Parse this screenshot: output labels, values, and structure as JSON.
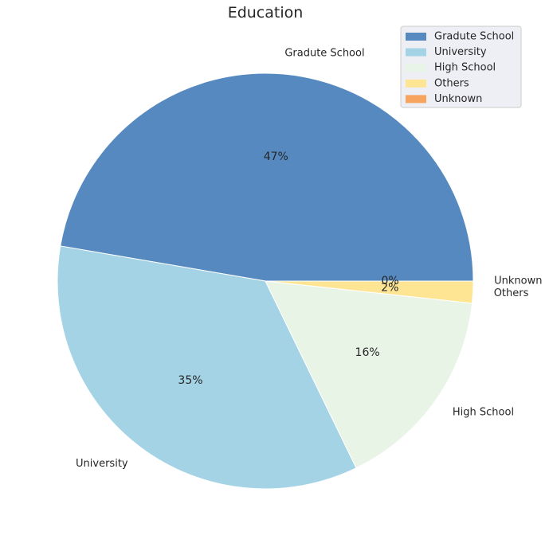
{
  "chart_data": {
    "type": "pie",
    "title": "Education",
    "categories": [
      "Gradute School",
      "University",
      "High School",
      "Others",
      "Unknown"
    ],
    "values": [
      47.3,
      34.9,
      16.1,
      1.7,
      0.0
    ],
    "percent_labels": [
      "47%",
      "35%",
      "16%",
      "2%",
      "0%"
    ],
    "colors": [
      "#5689bf",
      "#a4d3e6",
      "#e8f4e6",
      "#fee593",
      "#f6a45e"
    ],
    "start_angle_deg": 0,
    "direction": "counterclockwise",
    "legend": {
      "position": "top-right",
      "entries": [
        "Gradute School",
        "University",
        "High School",
        "Others",
        "Unknown"
      ]
    }
  }
}
